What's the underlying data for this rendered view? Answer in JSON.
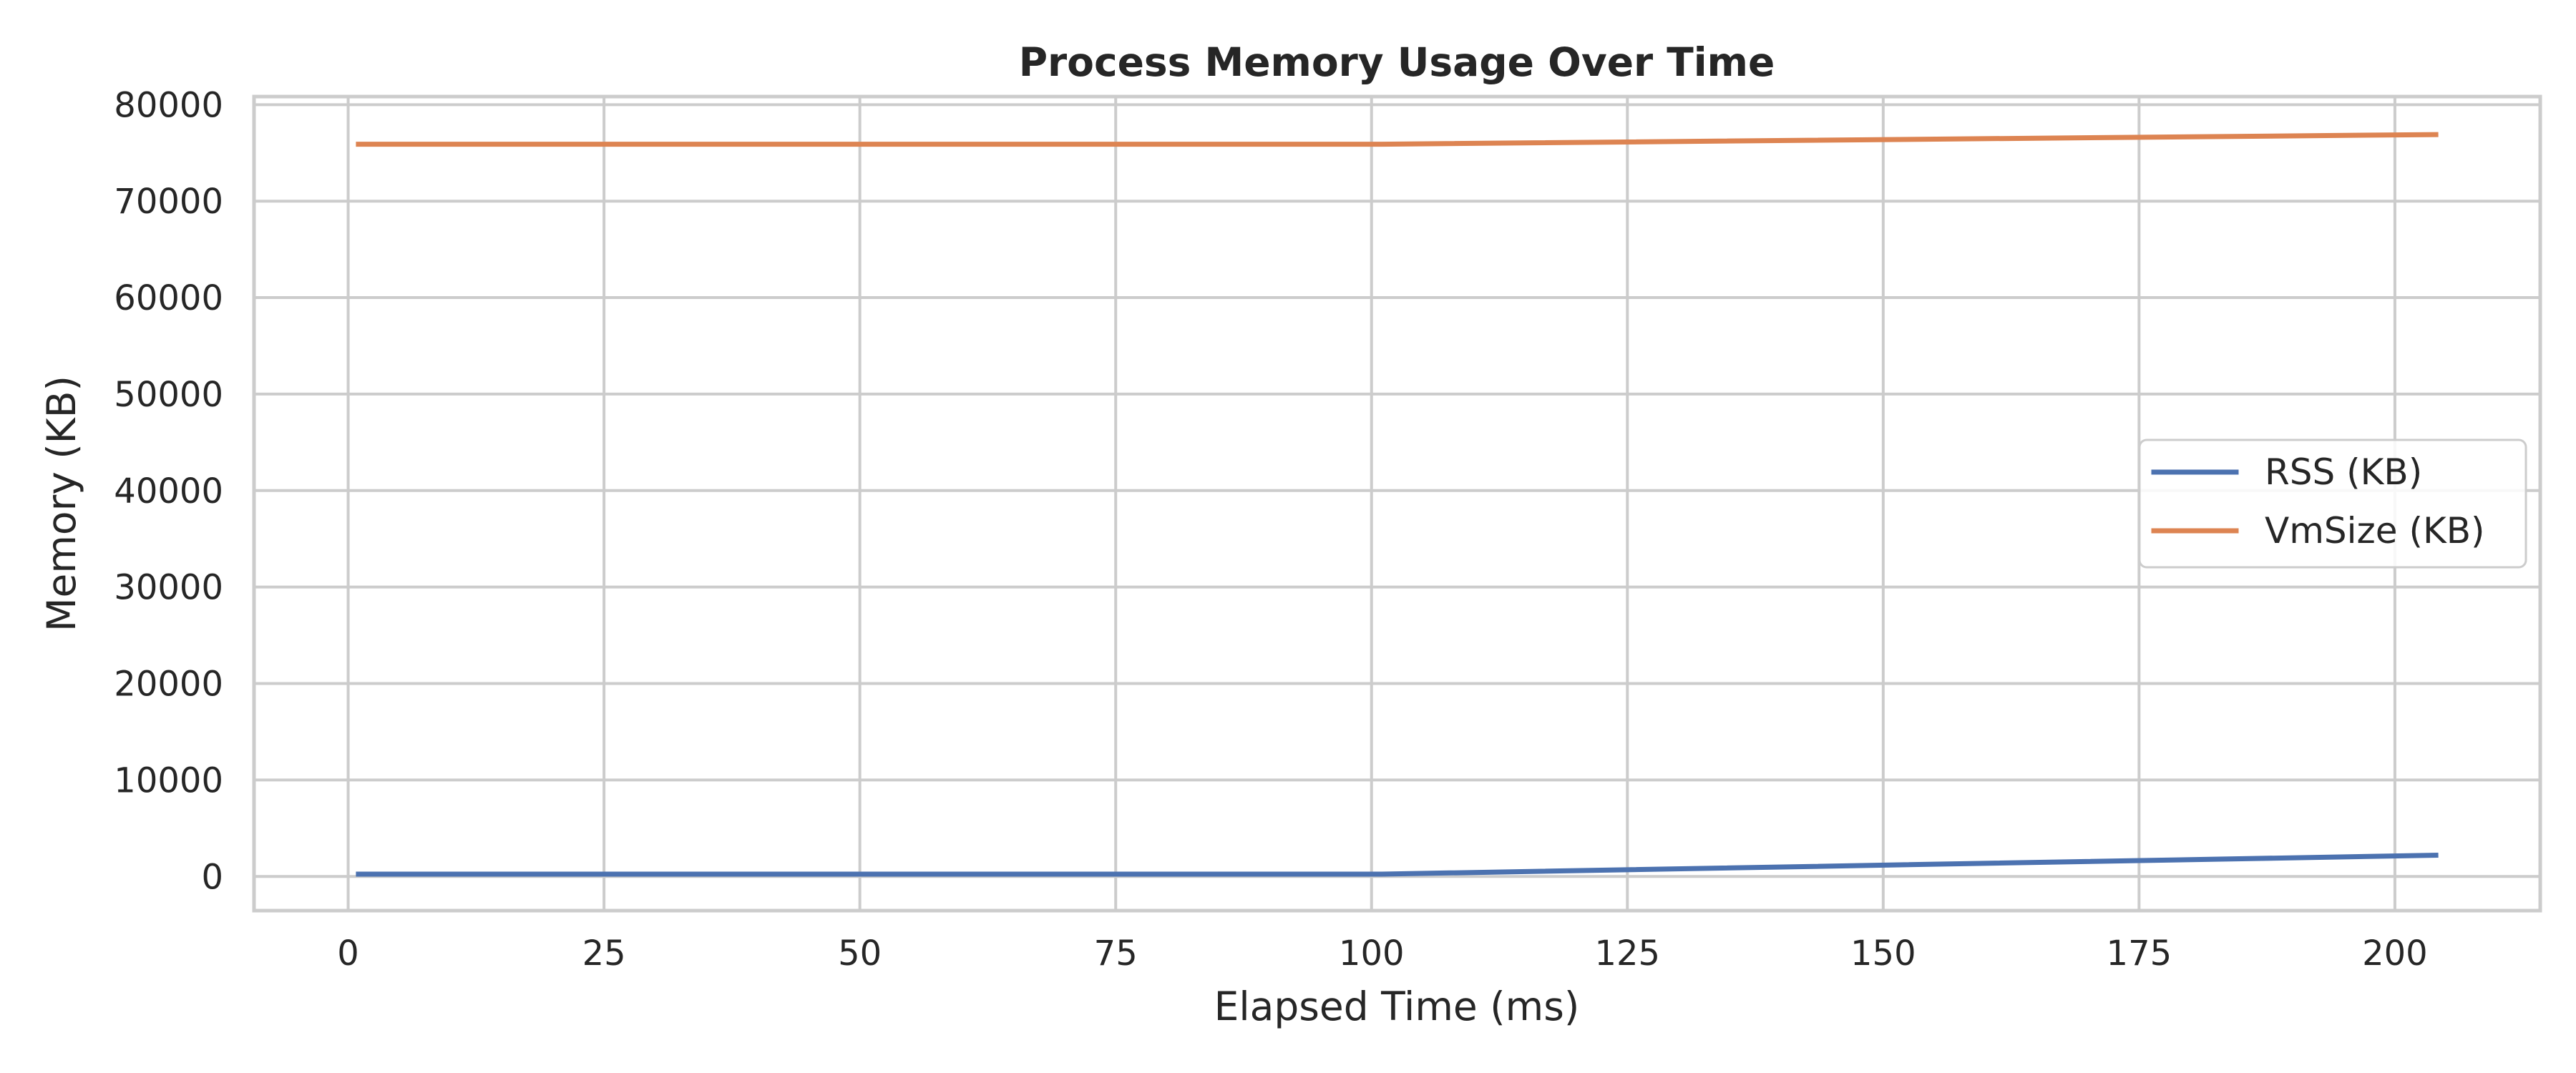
{
  "chart_data": {
    "type": "line",
    "title": "Process Memory Usage Over Time",
    "xlabel": "Elapsed Time (ms)",
    "ylabel": "Memory (KB)",
    "xlim": [
      -9.2,
      214.2
    ],
    "ylim": [
      -3540,
      80840
    ],
    "xticks": [
      0,
      25,
      50,
      75,
      100,
      125,
      150,
      175,
      200
    ],
    "yticks": [
      0,
      10000,
      20000,
      30000,
      40000,
      50000,
      60000,
      70000,
      80000
    ],
    "grid": true,
    "legend_position": "center-right",
    "series": [
      {
        "name": "RSS (KB)",
        "color": "#4c72b0",
        "x": [
          1,
          101,
          204
        ],
        "y": [
          240,
          240,
          2200
        ]
      },
      {
        "name": "VmSize (KB)",
        "color": "#dd8452",
        "x": [
          1,
          101,
          204
        ],
        "y": [
          75900,
          75900,
          76900
        ]
      }
    ]
  }
}
